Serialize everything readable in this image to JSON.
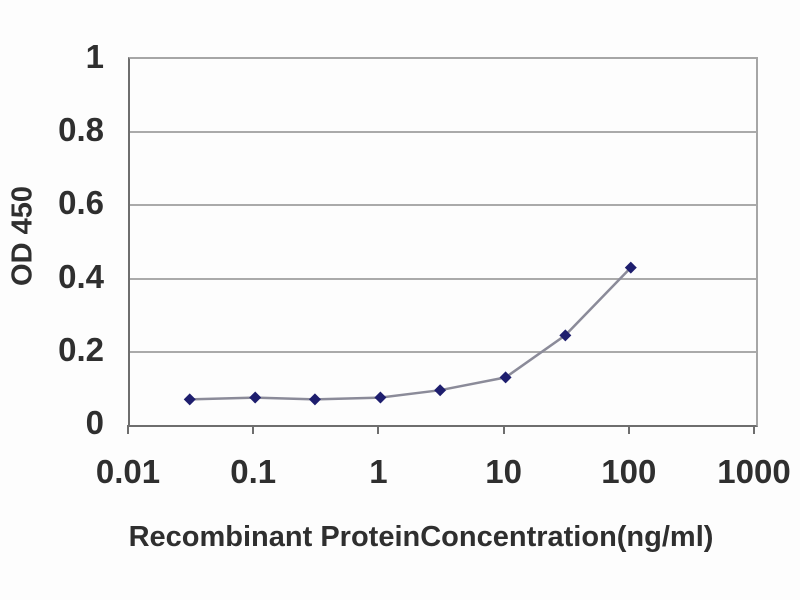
{
  "chart": {
    "y_axis_title": "OD 450",
    "x_axis_title": "Recombinant ProteinConcentration(ng/ml)"
  },
  "chart_data": {
    "type": "line",
    "x_scale": "log",
    "x": [
      0.03,
      0.1,
      0.3,
      1,
      3,
      10,
      30,
      100
    ],
    "series": [
      {
        "name": "OD 450",
        "values": [
          0.07,
          0.075,
          0.07,
          0.075,
          0.095,
          0.13,
          0.245,
          0.43
        ]
      }
    ],
    "title": "",
    "xlabel": "Recombinant ProteinConcentration(ng/ml)",
    "ylabel": "OD 450",
    "xlim": [
      0.01,
      1000
    ],
    "ylim": [
      0,
      1
    ],
    "x_tick_labels": [
      "0.01",
      "0.1",
      "1",
      "10",
      "100",
      "1000"
    ],
    "x_tick_values": [
      0.01,
      0.1,
      1,
      10,
      100,
      1000
    ],
    "y_tick_labels": [
      "0",
      "0.2",
      "0.4",
      "0.6",
      "0.8",
      "1"
    ],
    "y_tick_values": [
      0,
      0.2,
      0.4,
      0.6,
      0.8,
      1
    ],
    "grid": "horizontal",
    "legend": "none",
    "marker": "diamond",
    "colors": {
      "line": "#8b8b99",
      "marker": "#1e1e6e",
      "gridline": "#aaaaaa",
      "axis": "#6e6e6e",
      "frame": "#a6a6a6",
      "text": "#2f2f2f",
      "background": "#fdfdfd"
    }
  }
}
